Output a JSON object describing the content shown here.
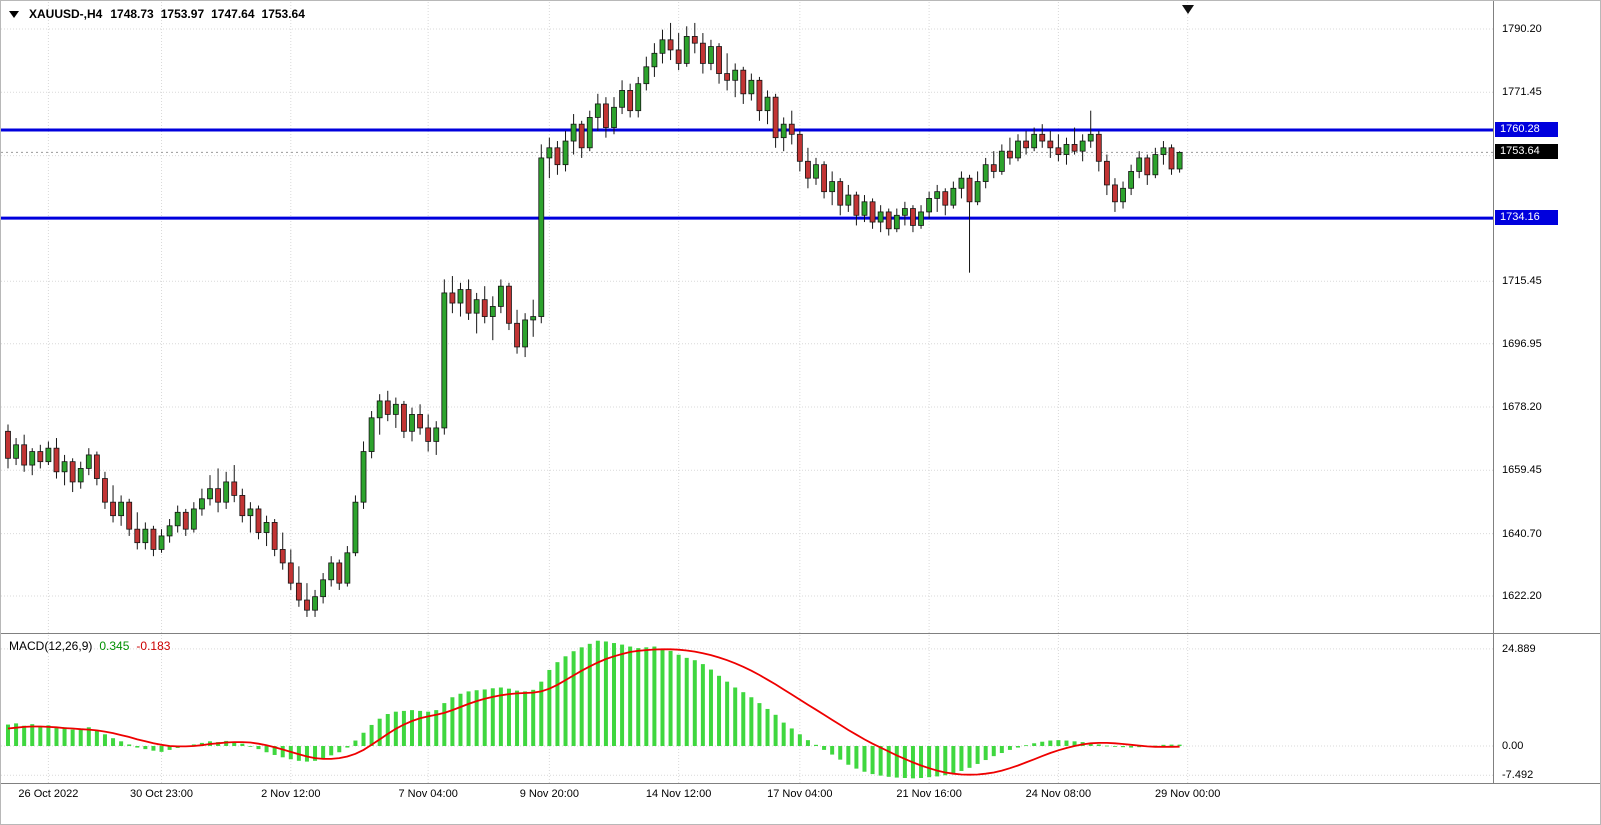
{
  "header": {
    "symbol_timeframe": "XAUUSD-,H4",
    "open": "1748.73",
    "high": "1753.97",
    "low": "1747.64",
    "close": "1753.64"
  },
  "price_scale": {
    "plain_labels": [
      "1790.20",
      "1771.45",
      "1715.45",
      "1696.95",
      "1678.20",
      "1659.45",
      "1640.70",
      "1622.20"
    ],
    "upper_tag": "1760.28",
    "current_tag": "1753.64",
    "lower_tag": "1734.16"
  },
  "time_scale": {
    "labels": [
      "26 Oct 2022",
      "30 Oct 23:00",
      "2 Nov 12:00",
      "7 Nov 04:00",
      "9 Nov 20:00",
      "14 Nov 12:00",
      "17 Nov 04:00",
      "21 Nov 16:00",
      "24 Nov 08:00",
      "29 Nov 00:00"
    ]
  },
  "macd_panel": {
    "label": "MACD(12,26,9)",
    "main_value": "0.345",
    "signal_value": "-0.183",
    "scale_labels": [
      "24.889",
      "0.00",
      "-7.492"
    ]
  },
  "colors": {
    "bull": "#2da32d",
    "bear": "#c23434",
    "outline": "#151515",
    "hline": "#0000dd",
    "macd_hist": "#3fd73f",
    "macd_signal": "#ee0000",
    "grid": "#d9d9d9",
    "current_price_line": "#9a9a9a"
  },
  "chart_data": {
    "type": "candlestick",
    "symbol": "XAUUSD",
    "timeframe": "H4",
    "title": "XAUUSD-,H4 1748.73 1753.97 1747.64 1753.64",
    "current_ohlc": {
      "open": 1748.73,
      "high": 1753.97,
      "low": 1747.64,
      "close": 1753.64
    },
    "hlines": [
      1760.28,
      1734.16
    ],
    "y_axis": {
      "top_price": 1790.2,
      "bottom_price": 1622.2,
      "grid_prices": [
        1790.2,
        1771.45,
        1752.7,
        1733.95,
        1715.45,
        1696.95,
        1678.2,
        1659.45,
        1640.7,
        1622.2
      ]
    },
    "x_axis": {
      "labels": [
        "26 Oct 2022",
        "30 Oct 23:00",
        "2 Nov 12:00",
        "7 Nov 04:00",
        "9 Nov 20:00",
        "14 Nov 12:00",
        "17 Nov 04:00",
        "21 Nov 16:00",
        "24 Nov 08:00",
        "29 Nov 00:00"
      ],
      "label_bar_index": [
        5,
        19,
        35,
        52,
        67,
        83,
        98,
        114,
        130,
        146
      ]
    },
    "candles": [
      [
        1671,
        1673,
        1660,
        1663
      ],
      [
        1663,
        1669,
        1661,
        1667
      ],
      [
        1667,
        1670,
        1659,
        1661
      ],
      [
        1661,
        1666,
        1658,
        1665
      ],
      [
        1665,
        1667,
        1660,
        1662
      ],
      [
        1662,
        1668,
        1661,
        1666
      ],
      [
        1666,
        1669,
        1657,
        1659
      ],
      [
        1659,
        1664,
        1655,
        1662
      ],
      [
        1662,
        1663,
        1653,
        1656
      ],
      [
        1656,
        1662,
        1654,
        1660
      ],
      [
        1660,
        1666,
        1658,
        1664
      ],
      [
        1664,
        1665,
        1655,
        1657
      ],
      [
        1657,
        1659,
        1648,
        1650
      ],
      [
        1650,
        1655,
        1644,
        1646
      ],
      [
        1646,
        1652,
        1643,
        1650
      ],
      [
        1650,
        1651,
        1640,
        1642
      ],
      [
        1642,
        1647,
        1636,
        1638
      ],
      [
        1638,
        1644,
        1636,
        1642
      ],
      [
        1642,
        1643,
        1634,
        1636
      ],
      [
        1636,
        1642,
        1635,
        1640
      ],
      [
        1640,
        1645,
        1638,
        1643
      ],
      [
        1643,
        1649,
        1641,
        1647
      ],
      [
        1647,
        1648,
        1640,
        1642
      ],
      [
        1642,
        1650,
        1641,
        1648
      ],
      [
        1648,
        1654,
        1646,
        1651
      ],
      [
        1651,
        1658,
        1649,
        1654
      ],
      [
        1654,
        1660,
        1647,
        1650
      ],
      [
        1650,
        1659,
        1648,
        1656
      ],
      [
        1656,
        1661,
        1650,
        1652
      ],
      [
        1652,
        1654,
        1644,
        1646
      ],
      [
        1646,
        1650,
        1641,
        1648
      ],
      [
        1648,
        1649,
        1639,
        1641
      ],
      [
        1641,
        1646,
        1637,
        1644
      ],
      [
        1644,
        1645,
        1634,
        1636
      ],
      [
        1636,
        1641,
        1630,
        1632
      ],
      [
        1632,
        1636,
        1624,
        1626
      ],
      [
        1626,
        1631,
        1619,
        1621
      ],
      [
        1621,
        1626,
        1616,
        1618
      ],
      [
        1618,
        1624,
        1616,
        1622
      ],
      [
        1622,
        1629,
        1620,
        1627
      ],
      [
        1627,
        1634,
        1625,
        1632
      ],
      [
        1632,
        1633,
        1624,
        1626
      ],
      [
        1626,
        1637,
        1625,
        1635
      ],
      [
        1635,
        1652,
        1634,
        1650
      ],
      [
        1650,
        1668,
        1648,
        1665
      ],
      [
        1665,
        1677,
        1663,
        1675
      ],
      [
        1675,
        1682,
        1670,
        1680
      ],
      [
        1680,
        1683,
        1674,
        1676
      ],
      [
        1676,
        1681,
        1672,
        1679
      ],
      [
        1679,
        1680,
        1669,
        1671
      ],
      [
        1671,
        1678,
        1668,
        1676
      ],
      [
        1676,
        1679,
        1670,
        1672
      ],
      [
        1672,
        1676,
        1665,
        1668
      ],
      [
        1668,
        1674,
        1664,
        1672
      ],
      [
        1672,
        1716,
        1670,
        1712
      ],
      [
        1712,
        1717,
        1706,
        1709
      ],
      [
        1709,
        1715,
        1705,
        1713
      ],
      [
        1713,
        1716,
        1704,
        1706
      ],
      [
        1706,
        1712,
        1700,
        1710
      ],
      [
        1710,
        1714,
        1703,
        1705
      ],
      [
        1705,
        1711,
        1698,
        1708
      ],
      [
        1708,
        1716,
        1706,
        1714
      ],
      [
        1714,
        1715,
        1701,
        1703
      ],
      [
        1703,
        1707,
        1694,
        1696
      ],
      [
        1696,
        1706,
        1693,
        1704
      ],
      [
        1704,
        1710,
        1699,
        1705
      ],
      [
        1705,
        1756,
        1703,
        1752
      ],
      [
        1752,
        1758,
        1746,
        1755
      ],
      [
        1755,
        1757,
        1747,
        1750
      ],
      [
        1750,
        1760,
        1748,
        1757
      ],
      [
        1757,
        1765,
        1753,
        1762
      ],
      [
        1762,
        1763,
        1752,
        1755
      ],
      [
        1755,
        1766,
        1754,
        1764
      ],
      [
        1764,
        1771,
        1760,
        1768
      ],
      [
        1768,
        1770,
        1758,
        1761
      ],
      [
        1761,
        1770,
        1759,
        1767
      ],
      [
        1767,
        1775,
        1765,
        1772
      ],
      [
        1772,
        1774,
        1764,
        1766
      ],
      [
        1766,
        1776,
        1764,
        1774
      ],
      [
        1774,
        1782,
        1772,
        1779
      ],
      [
        1779,
        1786,
        1776,
        1783
      ],
      [
        1783,
        1790,
        1780,
        1787
      ],
      [
        1787,
        1792,
        1781,
        1784
      ],
      [
        1784,
        1789,
        1778,
        1780
      ],
      [
        1780,
        1791,
        1779,
        1788
      ],
      [
        1788,
        1792,
        1783,
        1786
      ],
      [
        1786,
        1789,
        1777,
        1780
      ],
      [
        1780,
        1787,
        1778,
        1785
      ],
      [
        1785,
        1786,
        1774,
        1777
      ],
      [
        1777,
        1783,
        1772,
        1775
      ],
      [
        1775,
        1780,
        1770,
        1778
      ],
      [
        1778,
        1779,
        1768,
        1771
      ],
      [
        1771,
        1777,
        1769,
        1775
      ],
      [
        1775,
        1776,
        1763,
        1766
      ],
      [
        1766,
        1772,
        1762,
        1770
      ],
      [
        1770,
        1771,
        1755,
        1758
      ],
      [
        1758,
        1764,
        1754,
        1762
      ],
      [
        1762,
        1766,
        1756,
        1759
      ],
      [
        1759,
        1760,
        1748,
        1751
      ],
      [
        1751,
        1755,
        1743,
        1746
      ],
      [
        1746,
        1752,
        1744,
        1750
      ],
      [
        1750,
        1751,
        1740,
        1742
      ],
      [
        1742,
        1748,
        1738,
        1745
      ],
      [
        1745,
        1746,
        1735,
        1738
      ],
      [
        1738,
        1744,
        1736,
        1741
      ],
      [
        1741,
        1742,
        1732,
        1735
      ],
      [
        1735,
        1741,
        1733,
        1739
      ],
      [
        1739,
        1740,
        1731,
        1733
      ],
      [
        1733,
        1738,
        1730,
        1736
      ],
      [
        1736,
        1737,
        1729,
        1731
      ],
      [
        1731,
        1737,
        1730,
        1735
      ],
      [
        1735,
        1739,
        1732,
        1737
      ],
      [
        1737,
        1738,
        1730,
        1732
      ],
      [
        1732,
        1738,
        1731,
        1736
      ],
      [
        1736,
        1742,
        1734,
        1740
      ],
      [
        1740,
        1744,
        1736,
        1742
      ],
      [
        1742,
        1743,
        1735,
        1738
      ],
      [
        1738,
        1745,
        1737,
        1743
      ],
      [
        1743,
        1748,
        1740,
        1746
      ],
      [
        1746,
        1747,
        1718,
        1739
      ],
      [
        1739,
        1748,
        1738,
        1745
      ],
      [
        1745,
        1752,
        1743,
        1750
      ],
      [
        1750,
        1754,
        1746,
        1748
      ],
      [
        1748,
        1756,
        1747,
        1754
      ],
      [
        1754,
        1758,
        1750,
        1752
      ],
      [
        1752,
        1759,
        1751,
        1757
      ],
      [
        1757,
        1760,
        1753,
        1755
      ],
      [
        1755,
        1761,
        1754,
        1759
      ],
      [
        1759,
        1762,
        1755,
        1757
      ],
      [
        1757,
        1760,
        1752,
        1755
      ],
      [
        1755,
        1759,
        1751,
        1753
      ],
      [
        1753,
        1758,
        1750,
        1756
      ],
      [
        1756,
        1761,
        1753,
        1754
      ],
      [
        1754,
        1759,
        1751,
        1757
      ],
      [
        1757,
        1766,
        1755,
        1759
      ],
      [
        1759,
        1760,
        1748,
        1751
      ],
      [
        1751,
        1753,
        1741,
        1744
      ],
      [
        1744,
        1746,
        1736,
        1739
      ],
      [
        1739,
        1745,
        1737,
        1743
      ],
      [
        1743,
        1750,
        1741,
        1748
      ],
      [
        1748,
        1754,
        1746,
        1752
      ],
      [
        1752,
        1753,
        1744,
        1747
      ],
      [
        1747,
        1755,
        1746,
        1753
      ],
      [
        1753,
        1757,
        1750,
        1755
      ],
      [
        1755,
        1756,
        1747,
        1748.73
      ],
      [
        1748.73,
        1753.97,
        1747.64,
        1753.64
      ]
    ],
    "macd": {
      "label": "MACD(12,26,9)",
      "current_main": 0.345,
      "current_signal": -0.183,
      "levels": [
        24.889,
        0,
        -7.492
      ],
      "histogram": [
        5.5,
        5.8,
        5.2,
        5.6,
        5.0,
        5.3,
        4.6,
        4.8,
        4.2,
        4.5,
        4.8,
        4.0,
        3.0,
        2.0,
        1.2,
        0.4,
        -0.4,
        -0.8,
        -1.2,
        -1.5,
        -1.0,
        -0.5,
        0.0,
        0.4,
        0.8,
        1.2,
        1.0,
        1.3,
        1.1,
        0.6,
        0.0,
        -0.8,
        -1.6,
        -2.3,
        -2.9,
        -3.4,
        -3.8,
        -4.0,
        -3.8,
        -3.2,
        -2.4,
        -1.6,
        -0.4,
        1.4,
        3.4,
        5.4,
        7.0,
        8.2,
        8.8,
        9.0,
        9.2,
        9.0,
        8.8,
        9.2,
        11.0,
        12.5,
        13.4,
        14.0,
        14.3,
        14.5,
        14.8,
        15.0,
        14.7,
        14.2,
        14.0,
        14.4,
        16.5,
        19.5,
        21.5,
        23.0,
        24.3,
        25.3,
        26.2,
        27.0,
        26.8,
        26.4,
        26.0,
        25.5,
        25.1,
        25.3,
        25.5,
        25.0,
        24.4,
        23.4,
        22.6,
        22.0,
        21.0,
        19.6,
        18.0,
        16.5,
        15.0,
        13.8,
        12.5,
        11.0,
        9.5,
        8.0,
        6.0,
        4.5,
        3.0,
        1.5,
        0.3,
        -1.0,
        -2.2,
        -3.5,
        -4.8,
        -5.8,
        -6.6,
        -7.2,
        -7.6,
        -7.9,
        -8.1,
        -8.2,
        -8.3,
        -8.2,
        -8.0,
        -7.8,
        -7.5,
        -7.0,
        -6.4,
        -5.6,
        -4.6,
        -3.6,
        -2.6,
        -1.8,
        -1.0,
        -0.4,
        0.2,
        0.7,
        1.1,
        1.4,
        1.5,
        1.4,
        1.2,
        1.0,
        0.7,
        0.4,
        0.1,
        -0.1,
        -0.3,
        -0.4,
        -0.3,
        -0.1,
        0.1,
        0.3,
        0.35,
        0.345
      ],
      "signal": [
        4.5,
        4.7,
        4.9,
        5.0,
        5.0,
        4.9,
        4.8,
        4.6,
        4.5,
        4.3,
        4.2,
        4.0,
        3.7,
        3.3,
        2.8,
        2.3,
        1.7,
        1.2,
        0.7,
        0.3,
        0.0,
        -0.1,
        -0.1,
        0.0,
        0.2,
        0.5,
        0.7,
        0.9,
        1.0,
        1.0,
        0.9,
        0.6,
        0.2,
        -0.3,
        -0.9,
        -1.5,
        -2.1,
        -2.7,
        -3.1,
        -3.3,
        -3.3,
        -3.1,
        -2.7,
        -2.0,
        -1.0,
        0.3,
        1.7,
        3.1,
        4.4,
        5.5,
        6.4,
        7.1,
        7.6,
        8.0,
        8.5,
        9.2,
        10.0,
        10.8,
        11.5,
        12.1,
        12.6,
        13.0,
        13.3,
        13.5,
        13.6,
        13.7,
        14.0,
        14.7,
        15.7,
        16.9,
        18.1,
        19.3,
        20.4,
        21.4,
        22.3,
        23.0,
        23.6,
        24.1,
        24.4,
        24.6,
        24.75,
        24.8,
        24.8,
        24.7,
        24.5,
        24.2,
        23.8,
        23.3,
        22.7,
        22.0,
        21.2,
        20.3,
        19.3,
        18.2,
        17.0,
        15.8,
        14.5,
        13.2,
        11.9,
        10.6,
        9.3,
        8.0,
        6.7,
        5.4,
        4.1,
        2.9,
        1.7,
        0.6,
        -0.4,
        -1.4,
        -2.4,
        -3.3,
        -4.2,
        -5.0,
        -5.7,
        -6.3,
        -6.8,
        -7.1,
        -7.3,
        -7.35,
        -7.3,
        -7.1,
        -6.8,
        -6.3,
        -5.7,
        -5.0,
        -4.2,
        -3.4,
        -2.6,
        -1.8,
        -1.1,
        -0.5,
        0.0,
        0.4,
        0.7,
        0.8,
        0.8,
        0.7,
        0.5,
        0.3,
        0.1,
        -0.1,
        -0.2,
        -0.2,
        -0.2,
        -0.183
      ]
    }
  }
}
